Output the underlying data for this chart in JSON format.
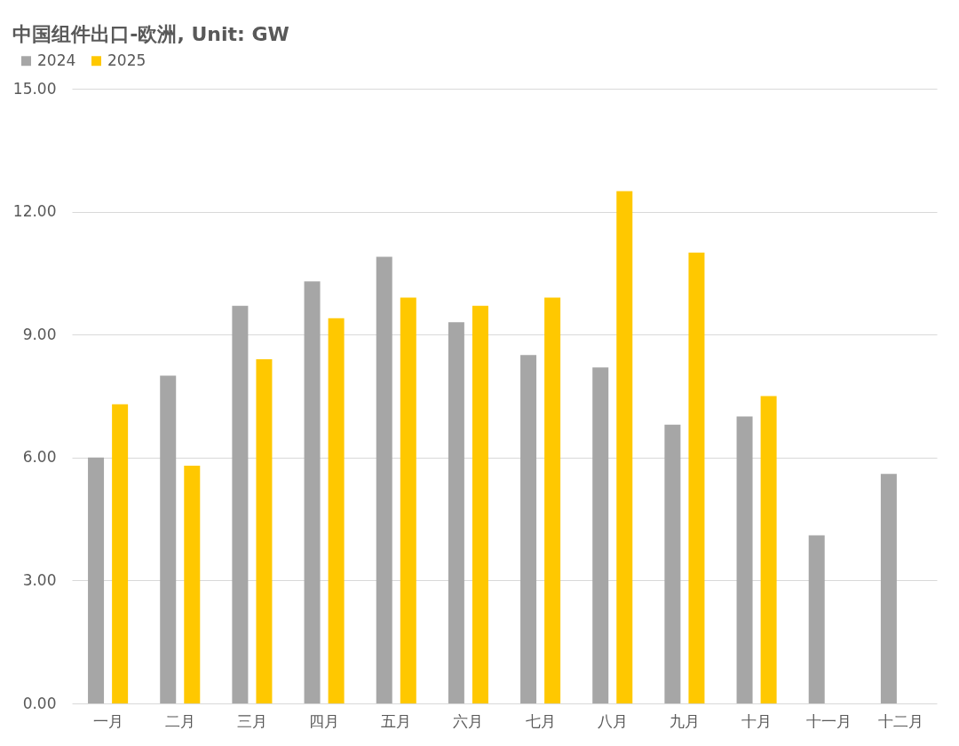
{
  "chart_data": {
    "type": "bar",
    "title": "中国组件出口-欧洲, Unit: GW",
    "categories": [
      "一月",
      "二月",
      "三月",
      "四月",
      "五月",
      "六月",
      "七月",
      "八月",
      "九月",
      "十月",
      "十一月",
      "十二月"
    ],
    "series": [
      {
        "name": "2024",
        "color": "#a6a6a6",
        "values": [
          6.0,
          8.0,
          9.7,
          10.3,
          10.9,
          9.3,
          8.5,
          8.2,
          6.8,
          7.0,
          4.1,
          5.6
        ]
      },
      {
        "name": "2025",
        "color": "#ffc800",
        "values": [
          7.3,
          5.8,
          8.4,
          9.4,
          9.9,
          9.7,
          9.9,
          12.5,
          11.0,
          7.5,
          null,
          null
        ]
      }
    ],
    "ylim": [
      0,
      15
    ],
    "yticks": [
      {
        "value": 0,
        "label": "0.00"
      },
      {
        "value": 3,
        "label": "3.00"
      },
      {
        "value": 6,
        "label": "6.00"
      },
      {
        "value": 9,
        "label": "9.00"
      },
      {
        "value": 12,
        "label": "12.00"
      },
      {
        "value": 15,
        "label": "15.00"
      }
    ],
    "grid": "y",
    "legend": "top left"
  }
}
